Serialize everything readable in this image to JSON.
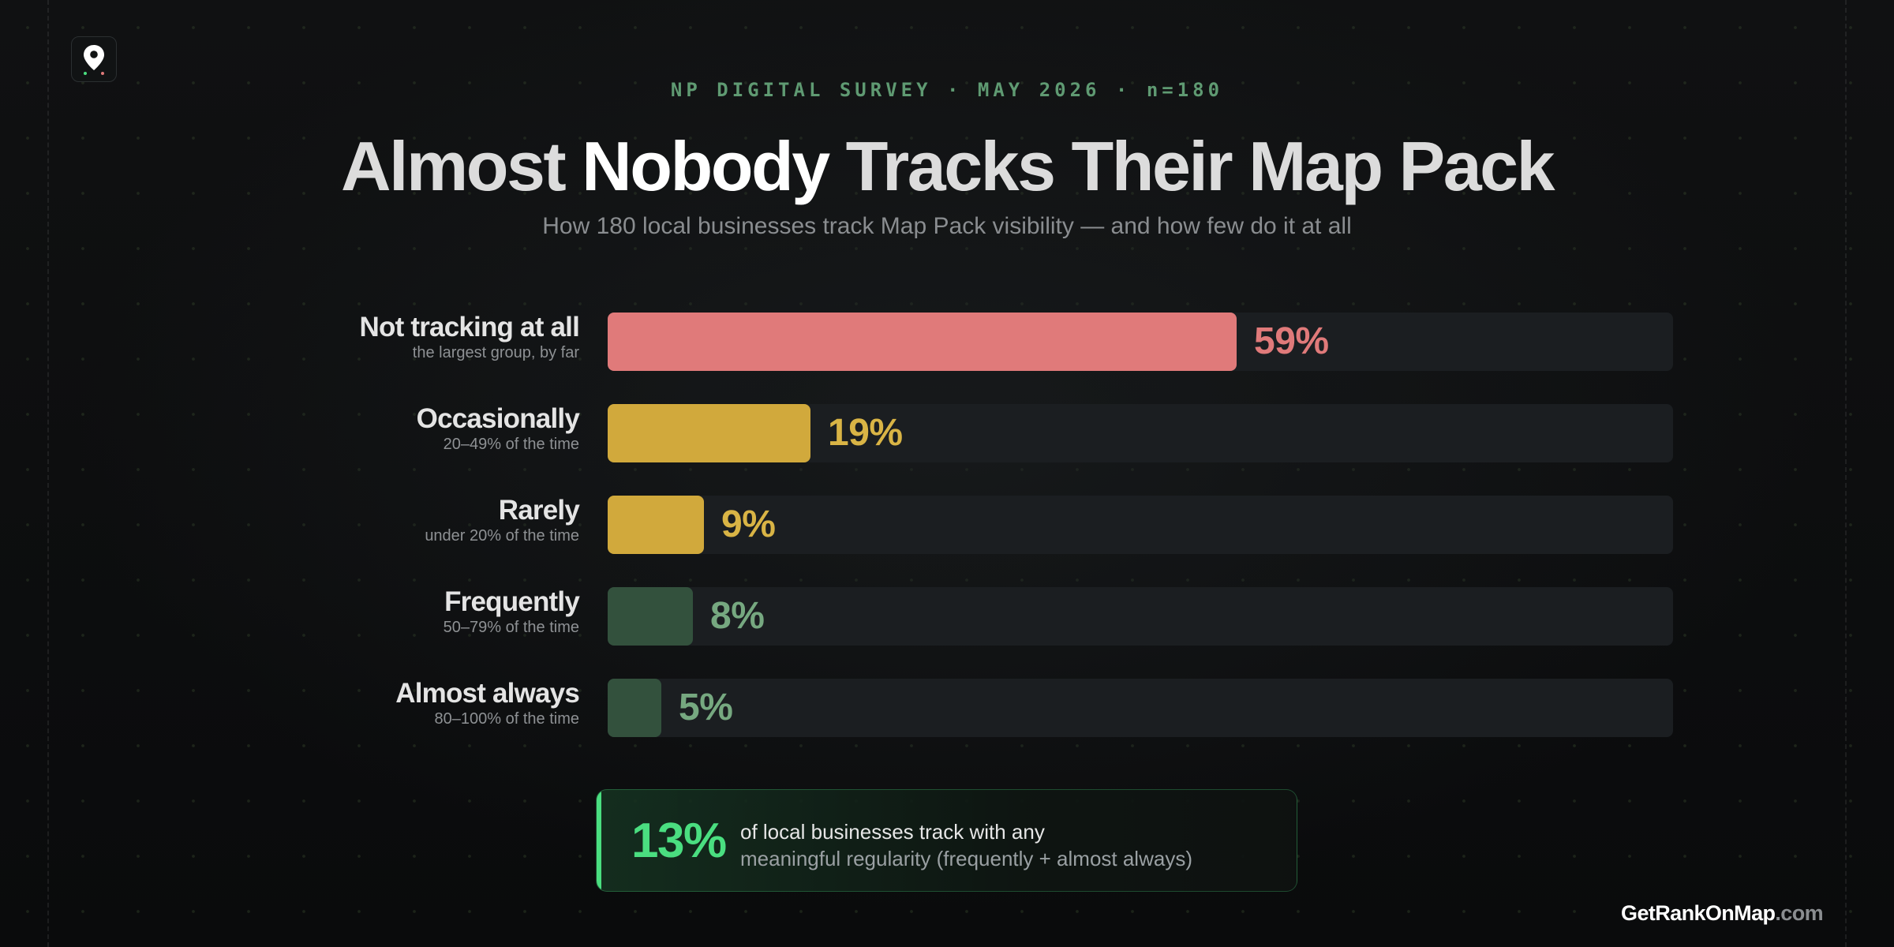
{
  "header": {
    "kicker": "NP DIGITAL SURVEY · MAY 2026 · n=180",
    "title_pre": "Almost ",
    "title_highlight": "Nobody",
    "title_post": " Tracks Their Map Pack",
    "subtitle": "How 180 local businesses track Map Pack visibility — and how few do it at all"
  },
  "logo": {
    "icon": "map-pin-icon"
  },
  "chart_data": {
    "type": "bar",
    "orientation": "horizontal",
    "xlim": [
      0,
      100
    ],
    "categories": [
      "Not tracking at all",
      "Occasionally",
      "Rarely",
      "Frequently",
      "Almost always"
    ],
    "descriptions": [
      "the largest group, by far",
      "20–49% of the time",
      "under 20% of the time",
      "50–79% of the time",
      "80–100% of the time"
    ],
    "values": [
      59,
      19,
      9,
      8,
      5
    ],
    "value_labels": [
      "59%",
      "19%",
      "9%",
      "8%",
      "5%"
    ],
    "bar_colors": [
      "#e07a7a",
      "#d1a93c",
      "#d1a93c",
      "#33513d",
      "#33513d"
    ],
    "label_colors": [
      "#e07a7a",
      "#d9b445",
      "#d9b445",
      "#76a880",
      "#76a880"
    ],
    "track_color": "#1b1e21"
  },
  "callout": {
    "stat": "13%",
    "line1": "of local businesses track with any",
    "line2": "meaningful regularity (frequently + almost always)",
    "accent_color": "#4ade80"
  },
  "footer": {
    "brand_main": "GetRankOnMap",
    "brand_tld": ".com"
  }
}
